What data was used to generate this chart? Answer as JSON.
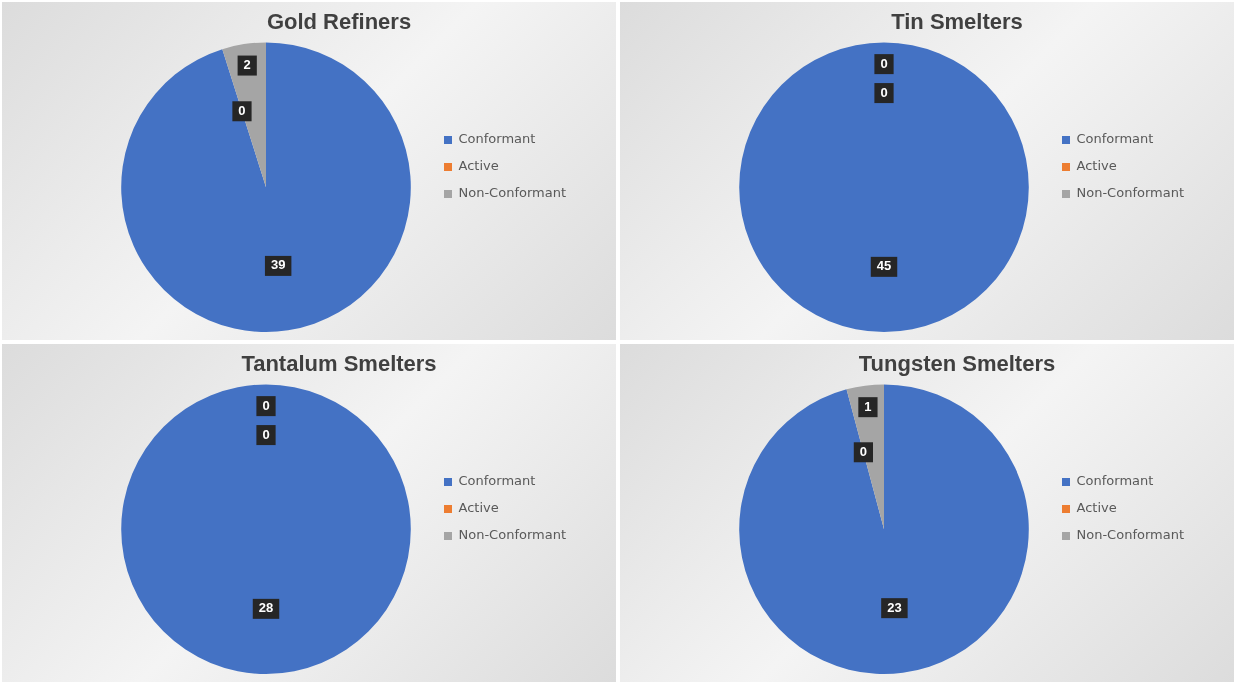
{
  "chart_data": [
    {
      "type": "pie",
      "title": "Gold Refiners",
      "categories": [
        "Conformant",
        "Active",
        "Non-Conformant"
      ],
      "values": [
        39,
        0,
        2
      ],
      "value_labels": [
        "39",
        "0",
        "2"
      ],
      "colors": [
        "#4472c4",
        "#ed7d31",
        "#a5a5a5"
      ],
      "legend": "right"
    },
    {
      "type": "pie",
      "title": "Tin Smelters",
      "categories": [
        "Conformant",
        "Active",
        "Non-Conformant"
      ],
      "values": [
        45,
        0,
        0
      ],
      "value_labels": [
        "45",
        "0",
        "0"
      ],
      "colors": [
        "#4472c4",
        "#ed7d31",
        "#a5a5a5"
      ],
      "legend": "right"
    },
    {
      "type": "pie",
      "title": "Tantalum Smelters",
      "categories": [
        "Conformant",
        "Active",
        "Non-Conformant"
      ],
      "values": [
        28,
        0,
        0
      ],
      "value_labels": [
        "28",
        "0",
        "0"
      ],
      "colors": [
        "#4472c4",
        "#ed7d31",
        "#a5a5a5"
      ],
      "legend": "right"
    },
    {
      "type": "pie",
      "title": "Tungsten Smelters",
      "categories": [
        "Conformant",
        "Active",
        "Non-Conformant"
      ],
      "values": [
        23,
        0,
        1
      ],
      "value_labels": [
        "23",
        "0",
        "1"
      ],
      "colors": [
        "#4472c4",
        "#ed7d31",
        "#a5a5a5"
      ],
      "legend": "right"
    }
  ]
}
